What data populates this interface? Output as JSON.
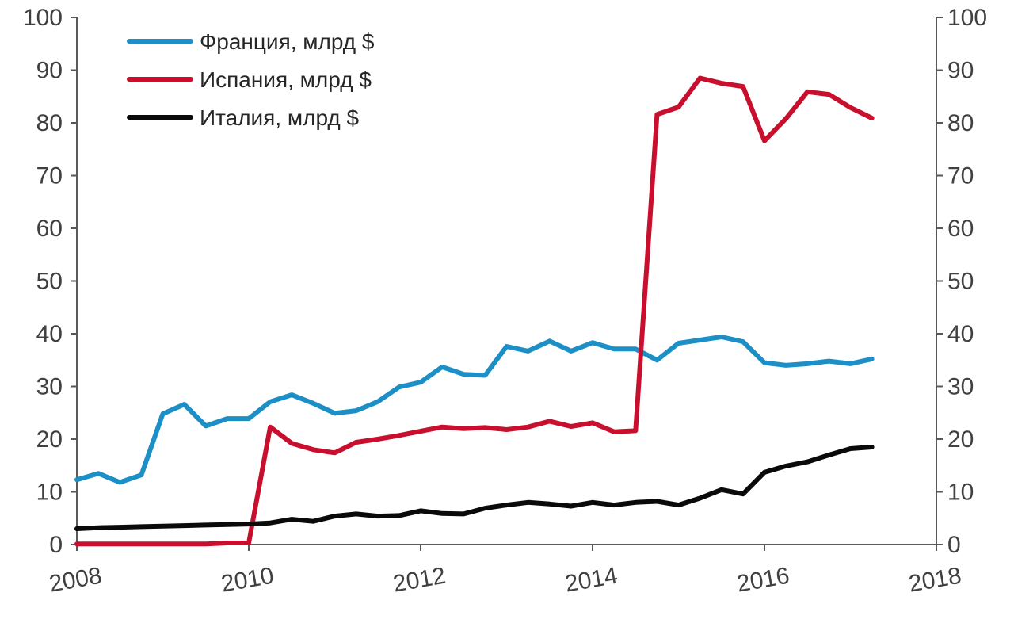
{
  "chart_data": {
    "type": "line",
    "title": "",
    "xlabel": "",
    "ylabel": "",
    "xlim": [
      2008,
      2018
    ],
    "ylim": [
      0,
      100
    ],
    "x_ticks": [
      "2008",
      "2010",
      "2012",
      "2014",
      "2016",
      "2018"
    ],
    "y_ticks": [
      "0",
      "10",
      "20",
      "30",
      "40",
      "50",
      "60",
      "70",
      "80",
      "90",
      "100"
    ],
    "secondary_y_axis": true,
    "grid": false,
    "legend_position": "top-left",
    "series": [
      {
        "name": "Франция, млрд $",
        "color": "#1B8FC6",
        "x": [
          2008.0,
          2008.25,
          2008.5,
          2008.75,
          2009.0,
          2009.25,
          2009.5,
          2009.75,
          2010.0,
          2010.25,
          2010.5,
          2010.75,
          2011.0,
          2011.25,
          2011.5,
          2011.75,
          2012.0,
          2012.25,
          2012.5,
          2012.75,
          2013.0,
          2013.25,
          2013.5,
          2013.75,
          2014.0,
          2014.25,
          2014.5,
          2014.75,
          2015.0,
          2015.25,
          2015.5,
          2015.75,
          2016.0,
          2016.25,
          2016.5,
          2016.75,
          2017.0,
          2017.25
        ],
        "values": [
          12.3,
          13.5,
          11.8,
          13.2,
          24.8,
          26.6,
          22.5,
          23.9,
          23.9,
          27.1,
          28.4,
          26.8,
          24.9,
          25.4,
          27.1,
          29.9,
          30.8,
          33.7,
          32.3,
          32.1,
          37.6,
          36.7,
          38.6,
          36.7,
          38.3,
          37.1,
          37.1,
          35.0,
          38.2,
          38.8,
          39.4,
          38.5,
          34.5,
          34.0,
          34.3,
          34.8,
          34.3,
          35.2
        ]
      },
      {
        "name": "Испания, млрд $",
        "color": "#C8102E",
        "x": [
          2008.0,
          2008.25,
          2008.5,
          2008.75,
          2009.0,
          2009.25,
          2009.5,
          2009.75,
          2010.0,
          2010.25,
          2010.5,
          2010.75,
          2011.0,
          2011.25,
          2011.5,
          2011.75,
          2012.0,
          2012.25,
          2012.5,
          2012.75,
          2013.0,
          2013.25,
          2013.5,
          2013.75,
          2014.0,
          2014.25,
          2014.5,
          2014.75,
          2015.0,
          2015.25,
          2015.5,
          2015.75,
          2016.0,
          2016.25,
          2016.5,
          2016.75,
          2017.0,
          2017.25
        ],
        "values": [
          0.1,
          0.1,
          0.1,
          0.1,
          0.1,
          0.1,
          0.1,
          0.3,
          0.3,
          22.3,
          19.2,
          18.0,
          17.4,
          19.4,
          20.0,
          20.7,
          21.5,
          22.3,
          22.0,
          22.2,
          21.8,
          22.3,
          23.4,
          22.4,
          23.1,
          21.4,
          21.6,
          81.6,
          83.0,
          88.5,
          87.5,
          86.9,
          76.6,
          80.8,
          85.9,
          85.4,
          82.9,
          80.9
        ]
      },
      {
        "name": "Италия, млрд $",
        "color": "#0A0A0A",
        "x": [
          2008.0,
          2008.25,
          2008.5,
          2008.75,
          2009.0,
          2009.25,
          2009.5,
          2009.75,
          2010.0,
          2010.25,
          2010.5,
          2010.75,
          2011.0,
          2011.25,
          2011.5,
          2011.75,
          2012.0,
          2012.25,
          2012.5,
          2012.75,
          2013.0,
          2013.25,
          2013.5,
          2013.75,
          2014.0,
          2014.25,
          2014.5,
          2014.75,
          2015.0,
          2015.25,
          2015.5,
          2015.75,
          2016.0,
          2016.25,
          2016.5,
          2016.75,
          2017.0,
          2017.25
        ],
        "values": [
          3.0,
          3.2,
          3.3,
          3.4,
          3.5,
          3.6,
          3.7,
          3.8,
          3.9,
          4.1,
          4.8,
          4.4,
          5.4,
          5.8,
          5.4,
          5.5,
          6.4,
          5.9,
          5.8,
          6.9,
          7.5,
          8.0,
          7.7,
          7.3,
          8.0,
          7.5,
          8.0,
          8.2,
          7.5,
          8.8,
          10.4,
          9.6,
          13.7,
          14.9,
          15.7,
          17.0,
          18.2,
          18.5
        ]
      }
    ]
  }
}
